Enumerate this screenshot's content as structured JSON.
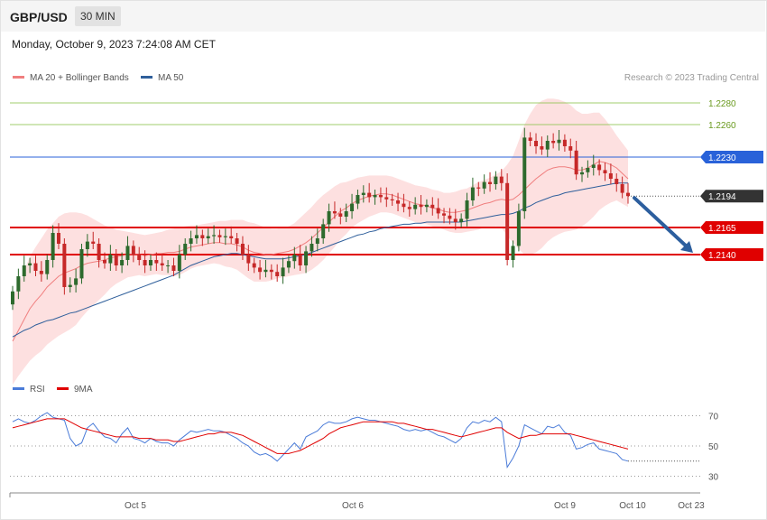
{
  "header": {
    "symbol": "GBP/USD",
    "timeframe": "30 MIN",
    "datetime": "Monday, October 9, 2023 7:24:08 AM CET",
    "credit": "Research © 2023 Trading Central"
  },
  "colors": {
    "ma20": "#f07f7f",
    "ma50": "#2f5f9b",
    "band": "#fde0e0",
    "bull": "#2d6a2d",
    "bear": "#c62828",
    "resistance": "#e00000",
    "support_line": "#2962d9",
    "upper_lines": "#8bc34a",
    "rsi": "#4a7bd8",
    "rsi_ma": "#e00000",
    "arrow": "#2c5e9e",
    "last": "#333333"
  },
  "chart_data": [
    {
      "type": "line",
      "panel": "price",
      "legend": [
        "MA 20 + Bollinger Bands",
        "MA 50"
      ],
      "x_ticks": [
        "Oct 5",
        "Oct 6",
        "Oct 9",
        "Oct 10",
        "Oct 23"
      ],
      "ylim": [
        1.2085,
        1.2305
      ],
      "levels": [
        {
          "value": 1.228,
          "label": "1.2280",
          "kind": "upper"
        },
        {
          "value": 1.226,
          "label": "1.2260",
          "kind": "upper"
        },
        {
          "value": 1.223,
          "label": "1.2230",
          "kind": "pivot"
        },
        {
          "value": 1.2194,
          "label": "1.2194",
          "kind": "last"
        },
        {
          "value": 1.2165,
          "label": "1.2165",
          "kind": "support"
        },
        {
          "value": 1.214,
          "label": "1.2140",
          "kind": "support"
        }
      ],
      "forecast": {
        "from": 1.2194,
        "to": 1.214
      },
      "close": [
        1.2106,
        1.212,
        1.213,
        1.2132,
        1.2125,
        1.2122,
        1.2135,
        1.216,
        1.215,
        1.211,
        1.2112,
        1.2118,
        1.2145,
        1.2152,
        1.215,
        1.2135,
        1.2132,
        1.214,
        1.213,
        1.2135,
        1.2148,
        1.214,
        1.2135,
        1.213,
        1.2135,
        1.2132,
        1.213,
        1.213,
        1.2125,
        1.214,
        1.215,
        1.2155,
        1.2158,
        1.2155,
        1.2157,
        1.2158,
        1.2156,
        1.2157,
        1.2155,
        1.215,
        1.214,
        1.2132,
        1.2128,
        1.2124,
        1.2126,
        1.2124,
        1.212,
        1.2128,
        1.2134,
        1.214,
        1.213,
        1.2143,
        1.215,
        1.2155,
        1.2168,
        1.218,
        1.2178,
        1.2175,
        1.218,
        1.2187,
        1.2195,
        1.2197,
        1.2193,
        1.2195,
        1.2193,
        1.2191,
        1.219,
        1.2187,
        1.2184,
        1.2182,
        1.2186,
        1.2184,
        1.2186,
        1.2183,
        1.2178,
        1.2176,
        1.2173,
        1.217,
        1.2173,
        1.219,
        1.2202,
        1.2201,
        1.2207,
        1.2205,
        1.2212,
        1.2206,
        1.2135,
        1.2148,
        1.218,
        1.2248,
        1.2245,
        1.224,
        1.2237,
        1.2245,
        1.2243,
        1.2246,
        1.224,
        1.2236,
        1.2214,
        1.2216,
        1.222,
        1.2223,
        1.2218,
        1.2215,
        1.221,
        1.2205,
        1.2197,
        1.2194
      ],
      "ma20": [
        1.206,
        1.207,
        1.208,
        1.209,
        1.2097,
        1.2103,
        1.211,
        1.2115,
        1.212,
        1.2123,
        1.2125,
        1.2127,
        1.213,
        1.2132,
        1.2133,
        1.2134,
        1.2135,
        1.2137,
        1.2138,
        1.2139,
        1.214,
        1.214,
        1.214,
        1.2139,
        1.214,
        1.2141,
        1.2141,
        1.2142,
        1.2142,
        1.2143,
        1.2145,
        1.2147,
        1.2148,
        1.2149,
        1.215,
        1.2151,
        1.2151,
        1.215,
        1.215,
        1.2149,
        1.2147,
        1.2144,
        1.2142,
        1.2141,
        1.214,
        1.214,
        1.2141,
        1.2142,
        1.2143,
        1.2145,
        1.2148,
        1.2151,
        1.2155,
        1.216,
        1.2165,
        1.217,
        1.2175,
        1.218,
        1.2183,
        1.2187,
        1.219,
        1.2192,
        1.2194,
        1.2195,
        1.2196,
        1.2196,
        1.2195,
        1.2193,
        1.2191,
        1.2189,
        1.2187,
        1.2186,
        1.2185,
        1.2183,
        1.2182,
        1.218,
        1.2179,
        1.2179,
        1.218,
        1.2181,
        1.2183,
        1.2185,
        1.2187,
        1.2188,
        1.219,
        1.2191,
        1.219,
        1.2191,
        1.2195,
        1.22,
        1.2205,
        1.221,
        1.2214,
        1.2218,
        1.222,
        1.2221,
        1.2221,
        1.222,
        1.2218,
        1.2218,
        1.222,
        1.2223,
        1.2226,
        1.2225,
        1.2223,
        1.222,
        1.2215,
        1.221
      ],
      "ma50": [
        1.2064,
        1.2067,
        1.207,
        1.2072,
        1.2075,
        1.2077,
        1.2079,
        1.208,
        1.2082,
        1.2084,
        1.2086,
        1.2087,
        1.2089,
        1.2091,
        1.2093,
        1.2095,
        1.2097,
        1.2099,
        1.2101,
        1.2103,
        1.2105,
        1.2107,
        1.2109,
        1.2111,
        1.2113,
        1.2115,
        1.2117,
        1.2119,
        1.2121,
        1.2124,
        1.2127,
        1.213,
        1.2132,
        1.2134,
        1.2136,
        1.2138,
        1.2139,
        1.214,
        1.2141,
        1.2141,
        1.214,
        1.2139,
        1.2138,
        1.2137,
        1.2136,
        1.2136,
        1.2136,
        1.2136,
        1.2137,
        1.2138,
        1.2139,
        1.214,
        1.2142,
        1.2144,
        1.2146,
        1.2148,
        1.215,
        1.2152,
        1.2154,
        1.2156,
        1.2158,
        1.2159,
        1.2161,
        1.2162,
        1.2164,
        1.2165,
        1.2166,
        1.2167,
        1.2168,
        1.2168,
        1.2169,
        1.2169,
        1.217,
        1.217,
        1.217,
        1.217,
        1.217,
        1.217,
        1.217,
        1.2171,
        1.2172,
        1.2173,
        1.2174,
        1.2175,
        1.2176,
        1.2177,
        1.2177,
        1.2178,
        1.218,
        1.2183,
        1.2185,
        1.2188,
        1.219,
        1.2192,
        1.2194,
        1.2195,
        1.2197,
        1.2198,
        1.2199,
        1.22,
        1.2201,
        1.2202,
        1.2203,
        1.2204,
        1.2205,
        1.2206,
        1.2206,
        1.2206
      ],
      "bb_width": [
        0.004,
        0.0042,
        0.0045,
        0.0048,
        0.005,
        0.0052,
        0.0053,
        0.0054,
        0.0055,
        0.0055,
        0.0054,
        0.0052,
        0.0048,
        0.0044,
        0.004,
        0.0036,
        0.0032,
        0.0028,
        0.0025,
        0.0023,
        0.0021,
        0.002,
        0.0019,
        0.0019,
        0.0019,
        0.0019,
        0.002,
        0.0021,
        0.0022,
        0.0022,
        0.0021,
        0.002,
        0.0019,
        0.0019,
        0.0019,
        0.0019,
        0.002,
        0.0021,
        0.0022,
        0.0023,
        0.0025,
        0.0026,
        0.0027,
        0.0026,
        0.0025,
        0.0024,
        0.0023,
        0.0023,
        0.0023,
        0.0024,
        0.0026,
        0.0028,
        0.0029,
        0.003,
        0.003,
        0.0029,
        0.0028,
        0.0026,
        0.0024,
        0.0022,
        0.0021,
        0.002,
        0.0019,
        0.0018,
        0.0017,
        0.0017,
        0.0017,
        0.0017,
        0.0017,
        0.0017,
        0.0017,
        0.0017,
        0.0017,
        0.0017,
        0.0017,
        0.0017,
        0.0018,
        0.0019,
        0.002,
        0.002,
        0.0021,
        0.0022,
        0.0022,
        0.0023,
        0.0024,
        0.0026,
        0.0033,
        0.004,
        0.005,
        0.006,
        0.0065,
        0.0068,
        0.0068,
        0.0066,
        0.0064,
        0.0062,
        0.006,
        0.0058,
        0.0055,
        0.0052,
        0.005,
        0.0048,
        0.0045,
        0.004,
        0.0035,
        0.003,
        0.0028,
        0.0026
      ]
    },
    {
      "type": "line",
      "panel": "rsi",
      "legend": [
        "RSI",
        "9MA"
      ],
      "ylim": [
        22,
        78
      ],
      "y_ticks": [
        70,
        50,
        30
      ],
      "rsi": [
        66,
        68,
        66,
        65,
        67,
        70,
        72,
        69,
        68,
        67,
        55,
        50,
        52,
        62,
        65,
        60,
        56,
        55,
        52,
        58,
        62,
        55,
        54,
        52,
        55,
        53,
        52,
        52,
        50,
        54,
        57,
        60,
        59,
        60,
        61,
        60,
        60,
        59,
        57,
        55,
        52,
        50,
        46,
        44,
        45,
        43,
        40,
        44,
        48,
        52,
        48,
        56,
        58,
        60,
        64,
        66,
        65,
        65,
        66,
        68,
        69,
        68,
        67,
        67,
        66,
        65,
        64,
        63,
        61,
        60,
        61,
        60,
        61,
        59,
        57,
        56,
        54,
        52,
        55,
        62,
        66,
        65,
        67,
        66,
        69,
        66,
        36,
        42,
        50,
        64,
        62,
        60,
        58,
        63,
        62,
        64,
        59,
        57,
        48,
        49,
        51,
        52,
        48,
        47,
        46,
        45,
        41,
        40
      ],
      "rsi_ma": [
        62,
        63,
        64,
        65,
        66,
        67,
        68,
        68,
        68,
        68,
        66,
        64,
        62,
        61,
        60,
        59,
        58,
        57,
        56,
        56,
        56,
        56,
        55,
        55,
        55,
        54,
        54,
        54,
        53,
        53,
        54,
        55,
        56,
        57,
        58,
        58,
        59,
        59,
        59,
        58,
        57,
        55,
        53,
        51,
        49,
        47,
        45,
        45,
        45,
        46,
        47,
        49,
        51,
        53,
        55,
        58,
        60,
        62,
        63,
        64,
        65,
        66,
        66,
        66,
        66,
        66,
        66,
        65,
        65,
        64,
        63,
        62,
        61,
        61,
        60,
        59,
        58,
        57,
        56,
        57,
        58,
        59,
        60,
        61,
        62,
        62,
        59,
        57,
        55,
        56,
        57,
        57,
        58,
        58,
        58,
        58,
        58,
        58,
        57,
        56,
        55,
        54,
        53,
        52,
        51,
        50,
        49,
        48
      ]
    }
  ]
}
